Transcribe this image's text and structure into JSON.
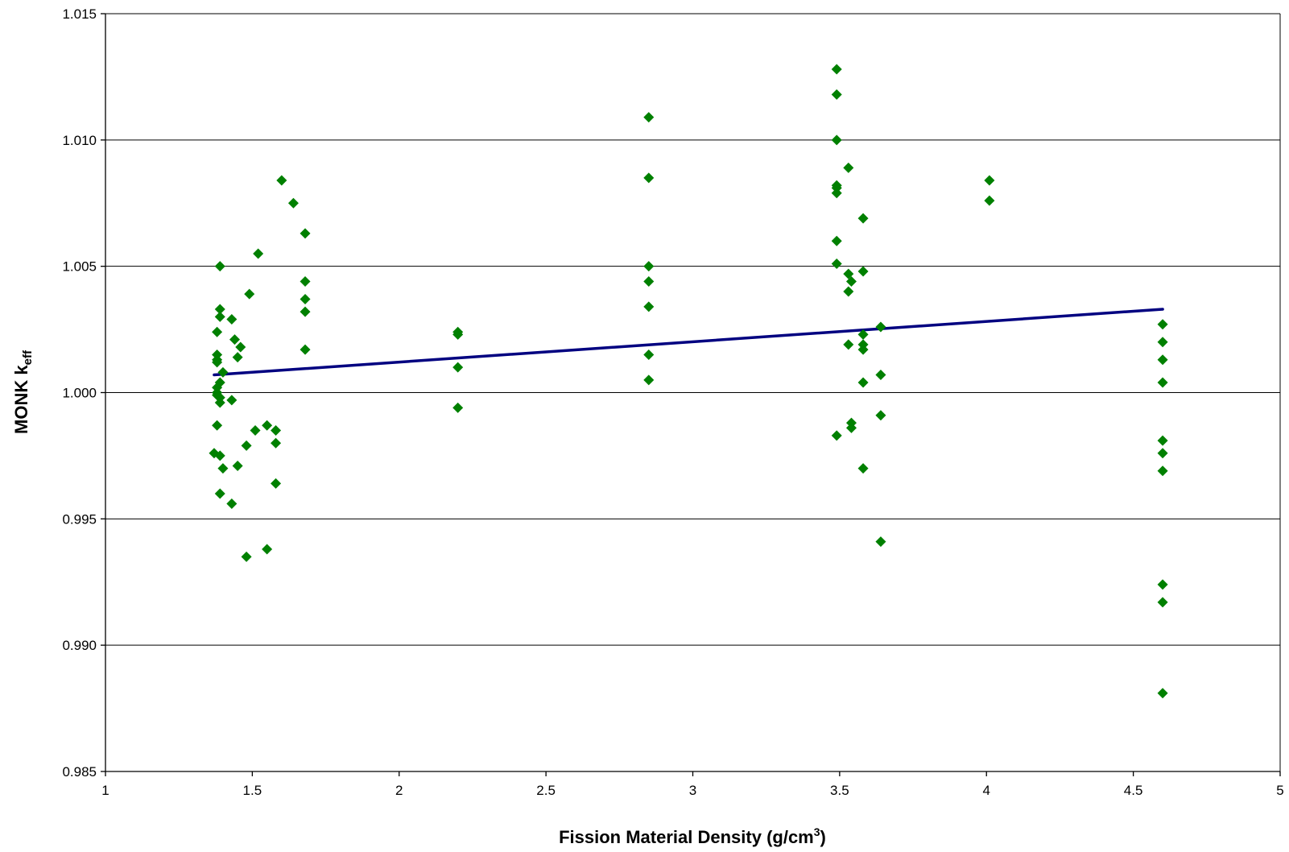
{
  "chart_data": {
    "type": "scatter",
    "title": "",
    "xlabel": {
      "main": "Fission Material Density (g/cm",
      "sup": "3",
      "end": ")"
    },
    "ylabel": {
      "main": "MONK k",
      "sub": "eff"
    },
    "xlim": [
      1,
      5
    ],
    "ylim": [
      0.985,
      1.015
    ],
    "x_ticks": [
      "1",
      "1.5",
      "2",
      "2.5",
      "3",
      "3.5",
      "4",
      "4.5",
      "5"
    ],
    "y_ticks": [
      "0.985",
      "0.990",
      "0.995",
      "1.000",
      "1.005",
      "1.010",
      "1.015"
    ],
    "grid": "horizontal-major",
    "legend": "none",
    "marker": "diamond",
    "marker_color": "#008000",
    "trendline_color": "#000080",
    "points": [
      [
        1.37,
        0.9976
      ],
      [
        1.38,
        0.9987
      ],
      [
        1.38,
        1.0024
      ],
      [
        1.38,
        1.0013
      ],
      [
        1.38,
        1.0012
      ],
      [
        1.38,
        1.0015
      ],
      [
        1.38,
        1.0002
      ],
      [
        1.38,
        1.0
      ],
      [
        1.38,
        0.9999
      ],
      [
        1.39,
        1.005
      ],
      [
        1.39,
        1.0033
      ],
      [
        1.39,
        1.003
      ],
      [
        1.39,
        1.0004
      ],
      [
        1.39,
        0.9998
      ],
      [
        1.39,
        0.9996
      ],
      [
        1.39,
        0.9975
      ],
      [
        1.39,
        0.996
      ],
      [
        1.4,
        1.0008
      ],
      [
        1.4,
        0.997
      ],
      [
        1.43,
        1.0029
      ],
      [
        1.43,
        0.9997
      ],
      [
        1.43,
        0.9956
      ],
      [
        1.44,
        1.0021
      ],
      [
        1.45,
        1.0014
      ],
      [
        1.45,
        0.9971
      ],
      [
        1.46,
        1.0018
      ],
      [
        1.48,
        0.9979
      ],
      [
        1.48,
        0.9935
      ],
      [
        1.49,
        1.0039
      ],
      [
        1.51,
        0.9985
      ],
      [
        1.52,
        1.0055
      ],
      [
        1.55,
        0.9987
      ],
      [
        1.55,
        0.9938
      ],
      [
        1.58,
        0.9985
      ],
      [
        1.58,
        0.998
      ],
      [
        1.58,
        0.9964
      ],
      [
        1.6,
        1.0084
      ],
      [
        1.64,
        1.0075
      ],
      [
        1.68,
        1.0063
      ],
      [
        1.68,
        1.0044
      ],
      [
        1.68,
        1.0037
      ],
      [
        1.68,
        1.0032
      ],
      [
        1.68,
        1.0017
      ],
      [
        2.2,
        1.0024
      ],
      [
        2.2,
        1.0023
      ],
      [
        2.2,
        1.001
      ],
      [
        2.2,
        0.9994
      ],
      [
        2.85,
        1.0109
      ],
      [
        2.85,
        1.0085
      ],
      [
        2.85,
        1.005
      ],
      [
        2.85,
        1.0044
      ],
      [
        2.85,
        1.0034
      ],
      [
        2.85,
        1.0015
      ],
      [
        2.85,
        1.0005
      ],
      [
        3.49,
        1.0128
      ],
      [
        3.49,
        1.0118
      ],
      [
        3.49,
        1.01
      ],
      [
        3.49,
        1.0082
      ],
      [
        3.49,
        1.0081
      ],
      [
        3.49,
        1.0079
      ],
      [
        3.49,
        1.006
      ],
      [
        3.49,
        1.0051
      ],
      [
        3.49,
        0.9983
      ],
      [
        3.53,
        1.0089
      ],
      [
        3.53,
        1.0047
      ],
      [
        3.53,
        1.004
      ],
      [
        3.53,
        1.0019
      ],
      [
        3.54,
        1.0044
      ],
      [
        3.54,
        0.9988
      ],
      [
        3.54,
        0.9986
      ],
      [
        3.58,
        1.0069
      ],
      [
        3.58,
        1.0048
      ],
      [
        3.58,
        1.0023
      ],
      [
        3.58,
        1.0019
      ],
      [
        3.58,
        1.0017
      ],
      [
        3.58,
        1.0004
      ],
      [
        3.58,
        0.997
      ],
      [
        3.64,
        1.0026
      ],
      [
        3.64,
        1.0007
      ],
      [
        3.64,
        0.9991
      ],
      [
        3.64,
        0.9941
      ],
      [
        4.01,
        1.0084
      ],
      [
        4.01,
        1.0076
      ],
      [
        4.6,
        1.0027
      ],
      [
        4.6,
        1.002
      ],
      [
        4.6,
        1.0013
      ],
      [
        4.6,
        1.0004
      ],
      [
        4.6,
        0.9981
      ],
      [
        4.6,
        0.9976
      ],
      [
        4.6,
        0.9969
      ],
      [
        4.6,
        0.9924
      ],
      [
        4.6,
        0.9917
      ],
      [
        4.6,
        0.9881
      ]
    ],
    "trendline": {
      "x": [
        1.37,
        4.6
      ],
      "y": [
        1.0007,
        1.0033
      ]
    }
  }
}
